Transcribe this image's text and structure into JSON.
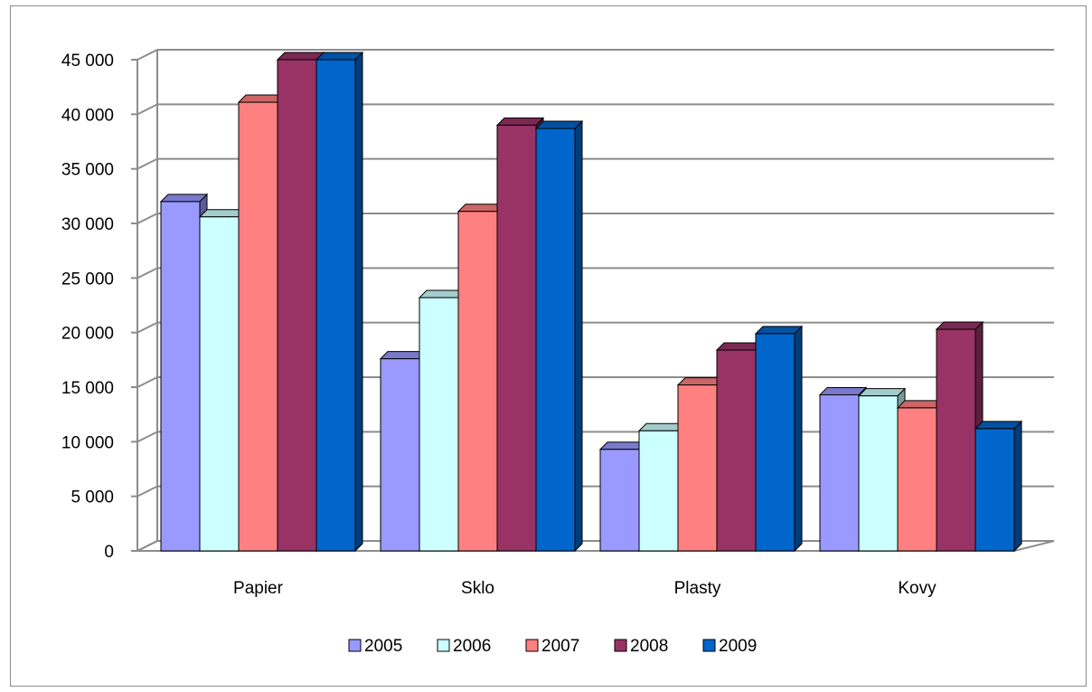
{
  "chart_data": {
    "type": "bar",
    "categories": [
      "Papier",
      "Sklo",
      "Plasty",
      "Kovy"
    ],
    "series": [
      {
        "name": "2005",
        "values": [
          32000,
          17600,
          9300,
          14300
        ]
      },
      {
        "name": "2006",
        "values": [
          30600,
          23200,
          11000,
          14200
        ]
      },
      {
        "name": "2007",
        "values": [
          41100,
          31100,
          15200,
          13100
        ]
      },
      {
        "name": "2008",
        "values": [
          45000,
          39000,
          18400,
          20300
        ]
      },
      {
        "name": "2009",
        "values": [
          45000,
          38700,
          19900,
          11200
        ]
      }
    ],
    "ylim": [
      0,
      45000
    ],
    "yticks": [
      0,
      5000,
      10000,
      15000,
      20000,
      25000,
      30000,
      35000,
      40000,
      45000
    ],
    "ytick_labels": [
      "0",
      "5 000",
      "10 000",
      "15 000",
      "20 000",
      "25 000",
      "30 000",
      "35 000",
      "40 000",
      "45 000"
    ],
    "grid": true,
    "legend_position": "bottom",
    "style": "3d-clustered-column"
  },
  "colors": {
    "series": [
      "#9999ff",
      "#ccffff",
      "#ff8080",
      "#993366",
      "#0066cc"
    ],
    "series_top": [
      "#7a7acc",
      "#a3cccc",
      "#cc6666",
      "#7a2952",
      "#0052a3"
    ],
    "series_side": [
      "#5c5c99",
      "#7a9999",
      "#994d4d",
      "#5c1f3d",
      "#003d7a"
    ],
    "grid": "#8c8c8c",
    "wall": "#ffffff"
  }
}
